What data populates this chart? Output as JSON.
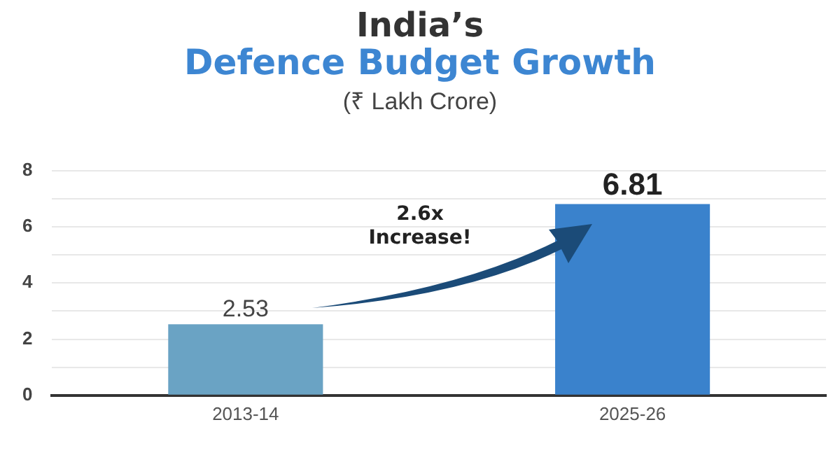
{
  "chart_data": {
    "type": "bar",
    "title": "India’s",
    "subtitle": "Defence Budget Growth",
    "annotations": [
      "(₹ Lakh Crore)",
      "2.6x\nIncrease!"
    ],
    "categories": [
      "2013-14",
      "2025-26"
    ],
    "values": [
      2.53,
      6.81
    ],
    "colors": [
      "#6aa3c4",
      "#3a82cc"
    ],
    "ylim": [
      0,
      8
    ],
    "yticks": [
      0,
      {
        "value": 1,
        "label": null
      },
      2,
      {
        "value": 3,
        "label": null
      },
      4,
      {
        "value": 5,
        "label": null
      },
      6,
      {
        "value": 7,
        "label": null
      },
      8
    ],
    "grid": "y",
    "data_labels": true,
    "legend": false
  }
}
